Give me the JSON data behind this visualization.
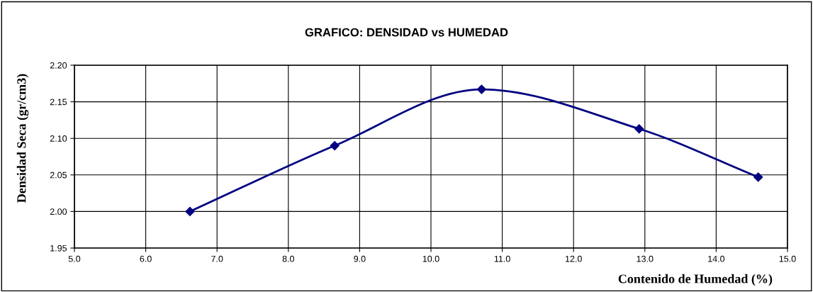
{
  "chart_data": {
    "type": "line",
    "title": "GRAFICO: DENSIDAD vs HUMEDAD",
    "xlabel": "Contenido de Humedad (%)",
    "ylabel": "Densidad Seca (gr/cm3)",
    "x": [
      6.62,
      8.65,
      10.71,
      12.92,
      14.59
    ],
    "series": [
      {
        "color": "#000080",
        "values": [
          2.0,
          2.09,
          2.167,
          2.113,
          2.047
        ]
      }
    ],
    "xlim": [
      5.0,
      15.0
    ],
    "xticks": [
      {
        "value": 5,
        "label": "5.0"
      },
      {
        "value": 6,
        "label": "6.0"
      },
      {
        "value": 7,
        "label": "7.0"
      },
      {
        "value": 8,
        "label": "8.0"
      },
      {
        "value": 9,
        "label": "9.0"
      },
      {
        "value": 10,
        "label": "10.0"
      },
      {
        "value": 11,
        "label": "11.0"
      },
      {
        "value": 12,
        "label": "12.0"
      },
      {
        "value": 13,
        "label": "13.0"
      },
      {
        "value": 14,
        "label": "14.0"
      },
      {
        "value": 15,
        "label": "15.0"
      }
    ],
    "ylim": [
      1.95,
      2.2
    ],
    "yticks": [
      {
        "value": 1.95,
        "label": "1.95"
      },
      {
        "value": 2.0,
        "label": "2.00"
      },
      {
        "value": 2.05,
        "label": "2.05"
      },
      {
        "value": 2.1,
        "label": "2.10"
      },
      {
        "value": 2.15,
        "label": "2.15"
      },
      {
        "value": 2.2,
        "label": "2.20"
      }
    ],
    "grid": true,
    "marker": "diamond",
    "line_style": "solid"
  }
}
